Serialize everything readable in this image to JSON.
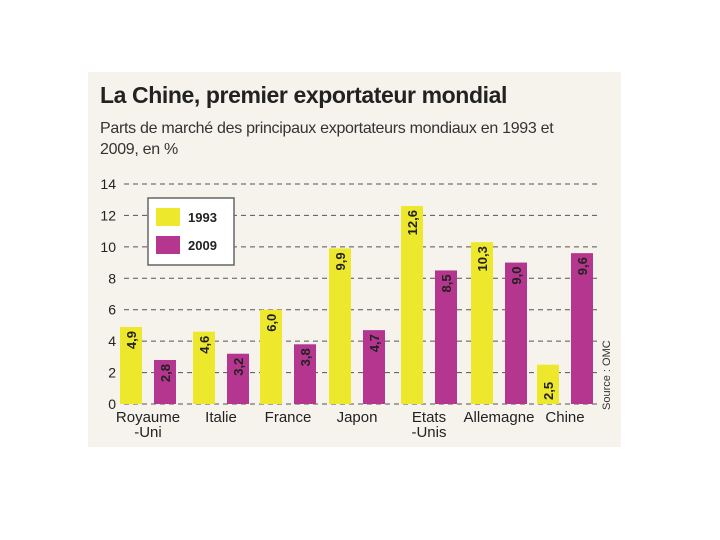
{
  "title": "La Chine, premier exportateur mondial",
  "subtitle": "Parts de marché des principaux exportateurs mondiaux en 1993 et 2009, en %",
  "source": "Source : OMC",
  "colors": {
    "1993": "#ede82c",
    "2009": "#b5368f"
  },
  "chart_data": {
    "type": "bar",
    "title": "La Chine, premier exportateur mondial",
    "subtitle": "Parts de marché des principaux exportateurs mondiaux en 1993 et 2009, en %",
    "categories": [
      [
        "Royaume",
        "-Uni"
      ],
      [
        "Italie"
      ],
      [
        "France"
      ],
      [
        "Japon"
      ],
      [
        "Etats",
        "-Unis"
      ],
      [
        "Allemagne"
      ],
      [
        "Chine"
      ]
    ],
    "series": [
      {
        "name": "1993",
        "values": [
          4.9,
          4.6,
          6.0,
          9.9,
          12.6,
          10.3,
          2.5
        ],
        "labels": [
          "4,9",
          "4,6",
          "6,0",
          "9,9",
          "12,6",
          "10,3",
          "2,5"
        ]
      },
      {
        "name": "2009",
        "values": [
          2.8,
          3.2,
          3.8,
          4.7,
          8.5,
          9.0,
          9.6
        ],
        "labels": [
          "2,8",
          "3,2",
          "3,8",
          "4,7",
          "8,5",
          "9,0",
          "9,6"
        ]
      }
    ],
    "ylim": [
      0,
      14
    ],
    "yticks": [
      0,
      2,
      4,
      6,
      8,
      10,
      12,
      14
    ],
    "grid": true,
    "legend": "top-left"
  }
}
